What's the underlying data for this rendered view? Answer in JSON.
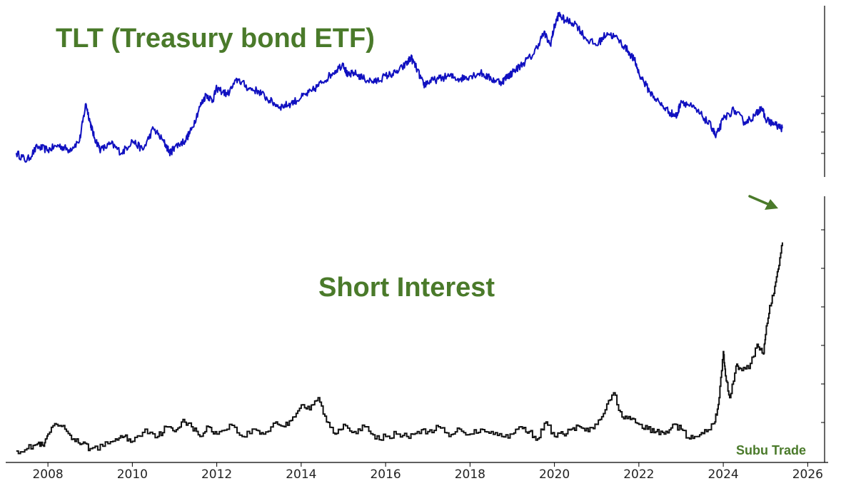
{
  "chart_data": [
    {
      "type": "line",
      "title": "TLT (Treasury bond ETF)",
      "xlim": [
        2007.0,
        2026.4
      ],
      "ylim": [
        0,
        100
      ],
      "y_axis_position": "right",
      "grid": false,
      "series": [
        {
          "color": "#1010c0",
          "x": [
            2007.25,
            2007.5,
            2007.75,
            2008.0,
            2008.25,
            2008.5,
            2008.75,
            2008.9,
            2009.0,
            2009.1,
            2009.25,
            2009.5,
            2009.75,
            2010.0,
            2010.25,
            2010.5,
            2010.75,
            2010.9,
            2011.0,
            2011.25,
            2011.4,
            2011.6,
            2011.75,
            2011.9,
            2012.0,
            2012.25,
            2012.5,
            2012.75,
            2013.0,
            2013.25,
            2013.5,
            2013.75,
            2014.0,
            2014.25,
            2014.5,
            2014.75,
            2015.0,
            2015.1,
            2015.25,
            2015.5,
            2015.75,
            2016.0,
            2016.25,
            2016.5,
            2016.6,
            2016.75,
            2016.9,
            2017.0,
            2017.25,
            2017.5,
            2017.75,
            2018.0,
            2018.25,
            2018.5,
            2018.75,
            2018.9,
            2019.0,
            2019.25,
            2019.5,
            2019.75,
            2019.9,
            2020.0,
            2020.1,
            2020.25,
            2020.5,
            2020.75,
            2021.0,
            2021.25,
            2021.5,
            2021.75,
            2021.9,
            2022.0,
            2022.25,
            2022.5,
            2022.75,
            2022.9,
            2023.0,
            2023.25,
            2023.5,
            2023.75,
            2023.82,
            2024.0,
            2024.25,
            2024.5,
            2024.75,
            2024.9,
            2025.0,
            2025.25,
            2025.4
          ],
          "y": [
            10,
            5,
            14,
            12,
            15,
            12,
            18,
            42,
            30,
            20,
            12,
            16,
            10,
            18,
            12,
            26,
            17,
            10,
            14,
            18,
            25,
            40,
            48,
            44,
            52,
            48,
            58,
            52,
            50,
            44,
            40,
            42,
            46,
            50,
            56,
            62,
            68,
            60,
            62,
            58,
            56,
            60,
            62,
            68,
            72,
            64,
            54,
            56,
            58,
            60,
            58,
            60,
            62,
            58,
            56,
            60,
            62,
            68,
            74,
            88,
            80,
            92,
            100,
            96,
            94,
            84,
            80,
            88,
            84,
            76,
            70,
            62,
            50,
            42,
            36,
            34,
            44,
            40,
            34,
            26,
            20,
            32,
            38,
            30,
            34,
            40,
            32,
            28,
            26
          ]
        }
      ]
    },
    {
      "type": "line",
      "title": "Short Interest",
      "xlim": [
        2007.0,
        2026.4
      ],
      "ylim": [
        0,
        100
      ],
      "y_axis_position": "right",
      "grid": false,
      "annotation": "arrow pointing at latest value",
      "series": [
        {
          "color": "#111111",
          "step": true,
          "x": [
            2007.25,
            2007.5,
            2007.75,
            2007.9,
            2008.0,
            2008.2,
            2008.4,
            2008.6,
            2008.8,
            2009.0,
            2009.3,
            2009.6,
            2009.8,
            2010.0,
            2010.3,
            2010.6,
            2010.8,
            2011.0,
            2011.2,
            2011.4,
            2011.6,
            2011.8,
            2012.0,
            2012.3,
            2012.6,
            2012.9,
            2013.1,
            2013.4,
            2013.6,
            2013.8,
            2014.0,
            2014.2,
            2014.4,
            2014.6,
            2014.8,
            2015.0,
            2015.25,
            2015.5,
            2015.75,
            2016.0,
            2016.25,
            2016.5,
            2016.75,
            2017.0,
            2017.25,
            2017.5,
            2017.75,
            2018.0,
            2018.25,
            2018.5,
            2018.75,
            2019.0,
            2019.2,
            2019.4,
            2019.6,
            2019.8,
            2020.0,
            2020.2,
            2020.4,
            2020.6,
            2020.8,
            2021.0,
            2021.2,
            2021.4,
            2021.6,
            2021.8,
            2022.0,
            2022.2,
            2022.4,
            2022.6,
            2022.8,
            2023.0,
            2023.2,
            2023.4,
            2023.6,
            2023.8,
            2023.9,
            2024.0,
            2024.05,
            2024.15,
            2024.3,
            2024.4,
            2024.6,
            2024.8,
            2024.95,
            2025.0,
            2025.1,
            2025.2,
            2025.3,
            2025.4
          ],
          "y": [
            0,
            1,
            3,
            2,
            7,
            11,
            9,
            5,
            3,
            1,
            2,
            5,
            6,
            4,
            9,
            6,
            10,
            8,
            13,
            10,
            6,
            10,
            7,
            11,
            6,
            9,
            7,
            12,
            10,
            14,
            19,
            17,
            22,
            12,
            7,
            11,
            8,
            10,
            5,
            6,
            7,
            6,
            8,
            8,
            10,
            6,
            9,
            7,
            9,
            8,
            6,
            7,
            10,
            8,
            5,
            12,
            6,
            7,
            9,
            10,
            8,
            11,
            17,
            24,
            14,
            13,
            11,
            9,
            8,
            7,
            11,
            9,
            5,
            6,
            8,
            12,
            22,
            41,
            31,
            22,
            35,
            34,
            34,
            44,
            40,
            48,
            60,
            65,
            75,
            86
          ]
        }
      ]
    }
  ],
  "x_axis": {
    "tick_labels": [
      "2008",
      "2010",
      "2012",
      "2014",
      "2016",
      "2018",
      "2020",
      "2022",
      "2024",
      "2026"
    ],
    "tick_values": [
      2008,
      2010,
      2012,
      2014,
      2016,
      2018,
      2020,
      2022,
      2024,
      2026
    ]
  },
  "watermark": "Subu Trade",
  "colors": {
    "title_green": "#4a7a2a",
    "tlt_line": "#1010c0",
    "short_interest_line": "#111111"
  }
}
